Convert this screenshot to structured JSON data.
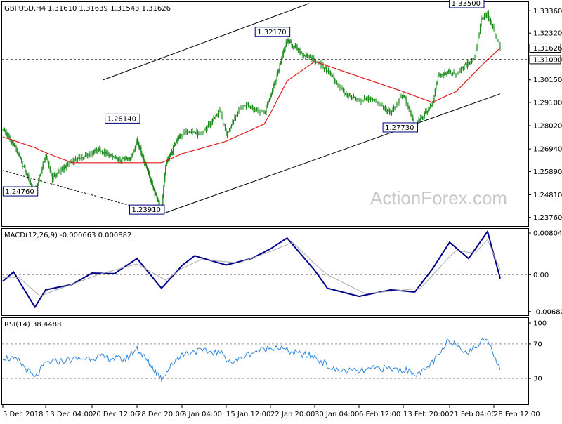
{
  "header": {
    "symbol": "GBPUSD,H4",
    "ohlc": "1.31610 1.31639 1.31543 1.31626"
  },
  "watermark": "ActionForex.com",
  "colors": {
    "candle": "#1a8a1a",
    "ma": "#e41a1a",
    "macd": "#00008b",
    "signal": "#aaaaaa",
    "rsi": "#2e86de",
    "channel": "#000000"
  },
  "chart_data": [
    {
      "type": "candlestick",
      "panel": "price",
      "title": "GBPUSD,H4 1.31610 1.31639 1.31543 1.31626",
      "ylim": [
        1.2336,
        1.3376
      ],
      "y_ticks": [
        "1.33360",
        "1.32320",
        "1.31626",
        "1.31090",
        "1.30150",
        "1.29100",
        "1.28020",
        "1.26940",
        "1.25890",
        "1.24810",
        "1.23760"
      ],
      "x_ticks": [
        "5 Dec 2018",
        "13 Dec 04:00",
        "20 Dec 12:00",
        "28 Dec 20:00",
        "8 Jan 04:00",
        "15 Jan 12:00",
        "22 Jan 20:00",
        "30 Jan 04:00",
        "6 Feb 12:00",
        "13 Feb 20:00",
        "21 Feb 04:00",
        "28 Feb 12:00"
      ],
      "close_anchors": [
        {
          "t": "5 Dec 2018",
          "v": 1.279
        },
        {
          "t": "7 Dec",
          "v": 1.2715
        },
        {
          "t": "11 Dec",
          "v": 1.249
        },
        {
          "t": "13 Dec",
          "v": 1.266
        },
        {
          "t": "14 Dec",
          "v": 1.256
        },
        {
          "t": "17 Dec",
          "v": 1.264
        },
        {
          "t": "19 Dec",
          "v": 1.266
        },
        {
          "t": "21 Dec",
          "v": 1.269
        },
        {
          "t": "25 Dec",
          "v": 1.264
        },
        {
          "t": "27 Dec",
          "v": 1.266
        },
        {
          "t": "28 Dec",
          "v": 1.274
        },
        {
          "t": "3 Jan",
          "v": 1.24
        },
        {
          "t": "4 Jan",
          "v": 1.262
        },
        {
          "t": "7 Jan",
          "v": 1.274
        },
        {
          "t": "9 Jan",
          "v": 1.278
        },
        {
          "t": "11 Jan",
          "v": 1.276
        },
        {
          "t": "14 Jan",
          "v": 1.287
        },
        {
          "t": "15 Jan",
          "v": 1.276
        },
        {
          "t": "17 Jan",
          "v": 1.288
        },
        {
          "t": "18 Jan",
          "v": 1.29
        },
        {
          "t": "21 Jan",
          "v": 1.286
        },
        {
          "t": "23 Jan",
          "v": 1.302
        },
        {
          "t": "25 Jan",
          "v": 1.32
        },
        {
          "t": "28 Jan",
          "v": 1.313
        },
        {
          "t": "30 Jan",
          "v": 1.311
        },
        {
          "t": "1 Feb",
          "v": 1.306
        },
        {
          "t": "4 Feb",
          "v": 1.294
        },
        {
          "t": "6 Feb",
          "v": 1.292
        },
        {
          "t": "8 Feb",
          "v": 1.293
        },
        {
          "t": "11 Feb",
          "v": 1.286
        },
        {
          "t": "13 Feb",
          "v": 1.295
        },
        {
          "t": "15 Feb",
          "v": 1.28
        },
        {
          "t": "18 Feb",
          "v": 1.29
        },
        {
          "t": "19 Feb",
          "v": 1.304
        },
        {
          "t": "21 Feb",
          "v": 1.305
        },
        {
          "t": "22 Feb",
          "v": 1.304
        },
        {
          "t": "25 Feb",
          "v": 1.312
        },
        {
          "t": "26 Feb",
          "v": 1.33
        },
        {
          "t": "27 Feb",
          "v": 1.332
        },
        {
          "t": "28 Feb",
          "v": 1.324
        },
        {
          "t": "1 Mar",
          "v": 1.3163
        }
      ],
      "ma_anchors": [
        {
          "t": "5 Dec 2018",
          "v": 1.275
        },
        {
          "t": "11 Dec",
          "v": 1.27
        },
        {
          "t": "17 Dec",
          "v": 1.263
        },
        {
          "t": "25 Dec",
          "v": 1.263
        },
        {
          "t": "3 Jan",
          "v": 1.263
        },
        {
          "t": "9 Jan",
          "v": 1.268
        },
        {
          "t": "15 Jan",
          "v": 1.273
        },
        {
          "t": "21 Jan",
          "v": 1.281
        },
        {
          "t": "25 Jan",
          "v": 1.301
        },
        {
          "t": "30 Jan",
          "v": 1.31
        },
        {
          "t": "4 Feb",
          "v": 1.305
        },
        {
          "t": "11 Feb",
          "v": 1.298
        },
        {
          "t": "18 Feb",
          "v": 1.291
        },
        {
          "t": "22 Feb",
          "v": 1.296
        },
        {
          "t": "26 Feb",
          "v": 1.308
        },
        {
          "t": "1 Mar",
          "v": 1.3163
        }
      ],
      "annotations": [
        {
          "label": "1.33500",
          "t": "26 Feb",
          "v": 1.335
        },
        {
          "label": "1.32170",
          "t": "25 Jan",
          "v": 1.3217
        },
        {
          "label": "1.28140",
          "t": "28 Dec",
          "v": 1.2814
        },
        {
          "label": "1.27730",
          "t": "15 Feb",
          "v": 1.2773
        },
        {
          "label": "1.24760",
          "t": "11 Dec",
          "v": 1.2476
        },
        {
          "label": "1.23910",
          "t": "3 Jan",
          "v": 1.2391
        }
      ],
      "horizontal_lines": [
        {
          "v": 1.31626,
          "style": "solid",
          "label": "1.31626"
        },
        {
          "v": 1.3109,
          "style": "dashed",
          "label": "1.31090"
        }
      ],
      "trend_lines": [
        {
          "style": "solid",
          "from": {
            "t": "22 Dec",
            "v": 1.3015
          },
          "to": {
            "t": "29 Jan",
            "v": 1.337
          }
        },
        {
          "style": "solid",
          "from": {
            "t": "3 Jan",
            "v": 1.2391
          },
          "to": {
            "t": "1 Mar",
            "v": 1.295
          }
        },
        {
          "style": "dashed",
          "from": {
            "t": "5 Dec 2018",
            "v": 1.2594
          },
          "to": {
            "t": "3 Jan",
            "v": 1.2391
          }
        }
      ]
    },
    {
      "type": "line",
      "panel": "macd",
      "title": "MACD(12,26,9) -0.000663 0.000882",
      "ylim": [
        -0.0075,
        0.0085
      ],
      "y_ticks": [
        "0.008044",
        "0.00",
        "-0.006821"
      ],
      "series": [
        {
          "name": "MACD",
          "anchors": [
            {
              "t": "5 Dec 2018",
              "v": -0.0012
            },
            {
              "t": "7 Dec",
              "v": 0.0005
            },
            {
              "t": "11 Dec",
              "v": -0.006
            },
            {
              "t": "13 Dec",
              "v": -0.0028
            },
            {
              "t": "17 Dec",
              "v": -0.0018
            },
            {
              "t": "20 Dec",
              "v": 0.0003
            },
            {
              "t": "24 Dec",
              "v": 0.0002
            },
            {
              "t": "28 Dec",
              "v": 0.003
            },
            {
              "t": "3 Jan",
              "v": -0.0025
            },
            {
              "t": "7 Jan",
              "v": 0.0008
            },
            {
              "t": "10 Jan",
              "v": 0.0035
            },
            {
              "t": "15 Jan",
              "v": 0.0018
            },
            {
              "t": "19 Jan",
              "v": 0.003
            },
            {
              "t": "22 Jan",
              "v": 0.0048
            },
            {
              "t": "25 Jan",
              "v": 0.0068
            },
            {
              "t": "30 Jan",
              "v": 0.0008
            },
            {
              "t": "1 Feb",
              "v": -0.0025
            },
            {
              "t": "6 Feb",
              "v": -0.004
            },
            {
              "t": "11 Feb",
              "v": -0.0028
            },
            {
              "t": "15 Feb",
              "v": -0.0032
            },
            {
              "t": "18 Feb",
              "v": 0.001
            },
            {
              "t": "21 Feb",
              "v": 0.006
            },
            {
              "t": "24 Feb",
              "v": 0.003
            },
            {
              "t": "27 Feb",
              "v": 0.008
            },
            {
              "t": "1 Mar",
              "v": -0.0007
            }
          ]
        },
        {
          "name": "Signal",
          "anchors": [
            {
              "t": "5 Dec 2018",
              "v": -0.0005
            },
            {
              "t": "8 Dec",
              "v": -0.0005
            },
            {
              "t": "12 Dec",
              "v": -0.004
            },
            {
              "t": "16 Dec",
              "v": -0.0022
            },
            {
              "t": "21 Dec",
              "v": 0.0
            },
            {
              "t": "28 Dec",
              "v": 0.002
            },
            {
              "t": "4 Jan",
              "v": -0.001
            },
            {
              "t": "11 Jan",
              "v": 0.0028
            },
            {
              "t": "17 Jan",
              "v": 0.0022
            },
            {
              "t": "26 Jan",
              "v": 0.006
            },
            {
              "t": "1 Feb",
              "v": 0.0
            },
            {
              "t": "7 Feb",
              "v": -0.0035
            },
            {
              "t": "16 Feb",
              "v": -0.0025
            },
            {
              "t": "22 Feb",
              "v": 0.0045
            },
            {
              "t": "25 Feb",
              "v": 0.004
            },
            {
              "t": "27 Feb",
              "v": 0.0065
            },
            {
              "t": "1 Mar",
              "v": 0.0009
            }
          ]
        }
      ],
      "zero_line": "dashed"
    },
    {
      "type": "line",
      "panel": "rsi",
      "title": "RSI(14) 38.4488",
      "ylim": [
        0,
        100
      ],
      "y_ticks": [
        "100",
        "70",
        "30"
      ],
      "reference_lines": [
        70,
        30
      ],
      "series": [
        {
          "name": "RSI(14)",
          "anchors": [
            {
              "t": "5 Dec 2018",
              "v": 55
            },
            {
              "t": "8 Dec",
              "v": 50
            },
            {
              "t": "11 Dec",
              "v": 30
            },
            {
              "t": "13 Dec",
              "v": 48
            },
            {
              "t": "17 Dec",
              "v": 52
            },
            {
              "t": "21 Dec",
              "v": 55
            },
            {
              "t": "26 Dec",
              "v": 52
            },
            {
              "t": "28 Dec",
              "v": 65
            },
            {
              "t": "3 Jan",
              "v": 30
            },
            {
              "t": "7 Jan",
              "v": 55
            },
            {
              "t": "10 Jan",
              "v": 62
            },
            {
              "t": "14 Jan",
              "v": 60
            },
            {
              "t": "16 Jan",
              "v": 48
            },
            {
              "t": "19 Jan",
              "v": 60
            },
            {
              "t": "23 Jan",
              "v": 67
            },
            {
              "t": "26 Jan",
              "v": 60
            },
            {
              "t": "30 Jan",
              "v": 55
            },
            {
              "t": "2 Feb",
              "v": 40
            },
            {
              "t": "6 Feb",
              "v": 38
            },
            {
              "t": "9 Feb",
              "v": 42
            },
            {
              "t": "13 Feb",
              "v": 40
            },
            {
              "t": "16 Feb",
              "v": 35
            },
            {
              "t": "19 Feb",
              "v": 55
            },
            {
              "t": "21 Feb",
              "v": 75
            },
            {
              "t": "24 Feb",
              "v": 60
            },
            {
              "t": "27 Feb",
              "v": 78
            },
            {
              "t": "1 Mar",
              "v": 38
            }
          ]
        }
      ]
    }
  ]
}
